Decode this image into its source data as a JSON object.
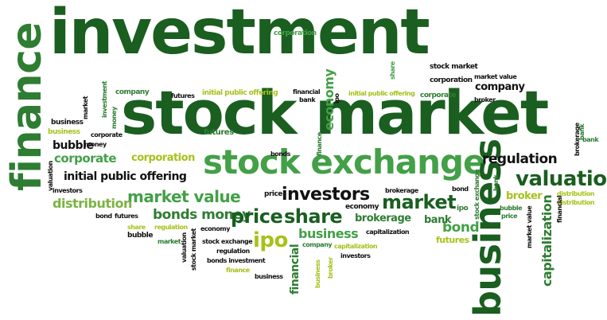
{
  "palette": {
    "dark_green": "#1a5e20",
    "forest_green": "#2e7d32",
    "green": "#43a047",
    "light_green": "#7cb342",
    "yellow_green": "#a6c21b",
    "black": "#111111"
  },
  "words": {
    "investment": "investment",
    "stock_market_big": "stock market",
    "stock_exchange_big": "stock exchange",
    "finance": "finance",
    "business_big": "business",
    "economy": "economy",
    "valuation": "valuation",
    "regulation": "regulation",
    "investors": "investors",
    "market_value": "market value",
    "market": "market",
    "bonds_money": "bonds money",
    "price": "price",
    "share": "share",
    "ipo": "ipo",
    "business_mid": "business",
    "bond": "bond",
    "bank": "bank",
    "capitalization": "capitalization",
    "distribution": "distribution",
    "corporate": "corporate",
    "corporation": "corporation",
    "initial_public_offering": "initial public offering",
    "bubble": "bubble",
    "broker": "broker",
    "company": "company",
    "brokerage": "brokerage",
    "futures": "futures",
    "financial": "financial"
  }
}
